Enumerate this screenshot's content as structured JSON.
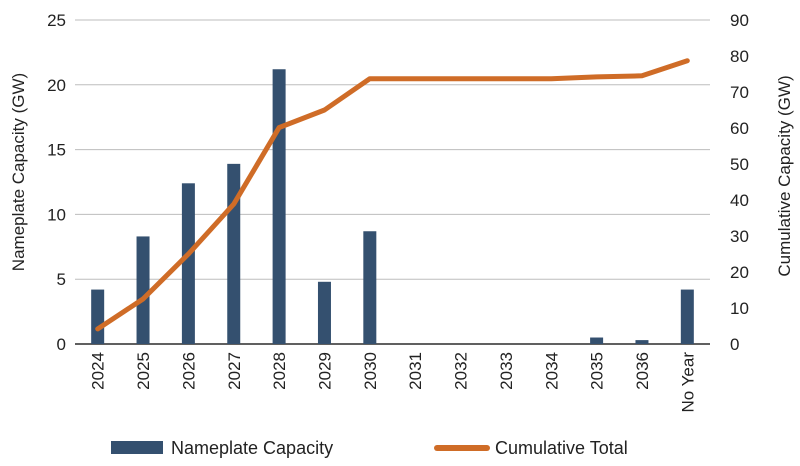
{
  "chart_data": {
    "type": "bar",
    "categories": [
      "2024",
      "2025",
      "2026",
      "2027",
      "2028",
      "2029",
      "2030",
      "2031",
      "2032",
      "2033",
      "2034",
      "2035",
      "2036",
      "No Year"
    ],
    "series": [
      {
        "name": "Nameplate Capacity",
        "type": "bar",
        "axis": "left",
        "color": "#34506f",
        "values": [
          4.2,
          8.3,
          12.4,
          13.9,
          21.2,
          4.8,
          8.7,
          0,
          0,
          0,
          0,
          0.5,
          0.3,
          4.2
        ]
      },
      {
        "name": "Cumulative Total",
        "type": "line",
        "axis": "right",
        "color": "#cf6c27",
        "values": [
          4.2,
          12.5,
          25,
          38.9,
          60.1,
          65,
          73.7,
          73.7,
          73.7,
          73.7,
          73.7,
          74.2,
          74.5,
          78.7
        ]
      }
    ],
    "ylabel": "Nameplate Capacity (GW)",
    "y2label": "Cumulative Capacity (GW)",
    "ylim": [
      0,
      25
    ],
    "y2lim": [
      0,
      90
    ],
    "yticks": [
      "0",
      "5",
      "10",
      "15",
      "20",
      "25"
    ],
    "y2ticks": [
      "0",
      "10",
      "20",
      "30",
      "40",
      "50",
      "60",
      "70",
      "80",
      "90"
    ],
    "grid": true,
    "legend_position": "bottom"
  }
}
